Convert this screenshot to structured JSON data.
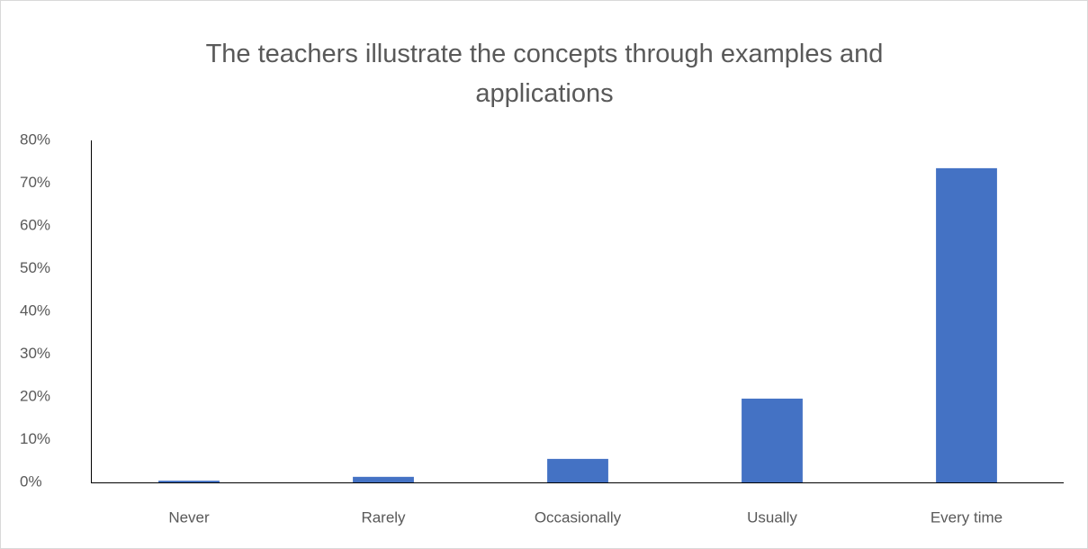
{
  "chart_data": {
    "type": "bar",
    "title": "The teachers illustrate the concepts through examples and applications",
    "categories": [
      "Never",
      "Rarely",
      "Occasionally",
      "Usually",
      "Every time"
    ],
    "values": [
      0.4,
      1.3,
      5.5,
      19.6,
      73.5
    ],
    "color": "#4472c4",
    "ylim": [
      0,
      80
    ],
    "yticks": [
      {
        "value": 0,
        "label": "0%"
      },
      {
        "value": 10,
        "label": "10%"
      },
      {
        "value": 20,
        "label": "20%"
      },
      {
        "value": 30,
        "label": "30%"
      },
      {
        "value": 40,
        "label": "40%"
      },
      {
        "value": 50,
        "label": "50%"
      },
      {
        "value": 60,
        "label": "60%"
      },
      {
        "value": 70,
        "label": "70%"
      },
      {
        "value": 80,
        "label": "80%"
      }
    ],
    "grid": false
  }
}
